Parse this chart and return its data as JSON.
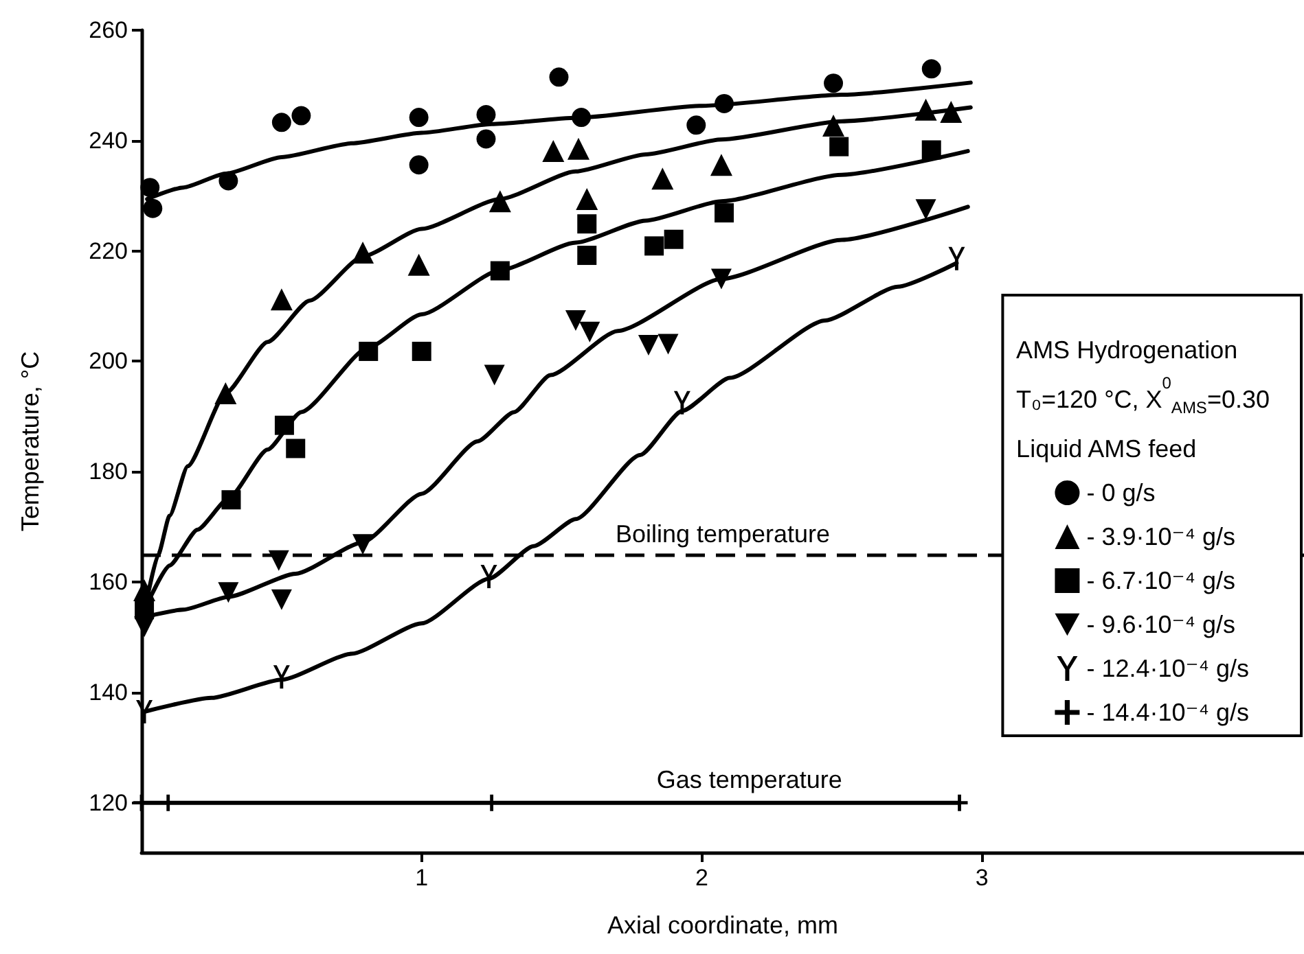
{
  "chart_data": {
    "type": "scatter",
    "xlabel": "Axial coordinate, mm",
    "ylabel": "Temperature, °C",
    "legend_title": "AMS Hydrogenation\nT₀=120 °C, X$^{0}$$_{AMS}$=0.30\nLiquid AMS feed",
    "xlim": [
      0,
      4.15
    ],
    "xticks": [
      1,
      2,
      3
    ],
    "ylim": [
      111,
      260
    ],
    "yticks": [
      120,
      140,
      160,
      180,
      200,
      220,
      240,
      260
    ],
    "grid": false,
    "legend": "right",
    "ref_lines": [
      {
        "axis": "y",
        "value": 165,
        "label": "Boiling temperature",
        "line_style": "dashed",
        "color": "#000000"
      }
    ],
    "annotations": [
      {
        "text": "Gas temperature",
        "x": 2.17,
        "y": 120
      }
    ],
    "series": [
      {
        "name": "- 0 g/s",
        "marker": "circle",
        "color": "#000000",
        "x": [
          0.03,
          0.04,
          0.31,
          0.5,
          0.57,
          0.99,
          0.99,
          1.23,
          1.23,
          1.49,
          1.57,
          1.98,
          2.08,
          2.47,
          2.82
        ],
        "values": [
          231.5,
          227.7,
          232.7,
          243.3,
          244.5,
          244.2,
          235.6,
          244.7,
          240.3,
          251.5,
          244.2,
          242.8,
          246.7,
          250.4,
          253
        ]
      },
      {
        "name": "- 3.9·10⁻⁴ g/s",
        "marker": "triangle",
        "color": "#000000",
        "x": [
          0.01,
          0.3,
          0.5,
          0.79,
          0.99,
          1.28,
          1.47,
          1.56,
          1.59,
          1.86,
          2.07,
          2.47,
          2.8,
          2.89
        ],
        "values": [
          158.5,
          194.2,
          211.2,
          219.7,
          217.5,
          229,
          238.1,
          238.5,
          229.4,
          233.1,
          235.6,
          242.7,
          245.6,
          245.2
        ]
      },
      {
        "name": "- 6.7·10⁻⁴ g/s",
        "marker": "square",
        "color": "#000000",
        "x": [
          0.01,
          0.32,
          0.51,
          0.55,
          0.81,
          1.0,
          1.28,
          1.59,
          1.59,
          1.83,
          1.9,
          2.08,
          2.49,
          2.82
        ],
        "values": [
          155,
          174.9,
          188.4,
          184.2,
          201.8,
          201.8,
          216.4,
          224.9,
          219.2,
          220.9,
          222.1,
          226.9,
          238.9,
          238.3
        ]
      },
      {
        "name": "- 9.6·10⁻⁴ g/s",
        "marker": "triangle-down",
        "color": "#000000",
        "x": [
          0.01,
          0.31,
          0.49,
          0.5,
          0.79,
          1.26,
          1.55,
          1.6,
          1.81,
          1.88,
          2.07,
          2.8
        ],
        "values": [
          151.9,
          158.1,
          163.9,
          156.8,
          166.8,
          197.5,
          207.4,
          205.3,
          202.9,
          203.1,
          214.9,
          227.5
        ]
      },
      {
        "name": "- 12.4·10⁻⁴ g/s",
        "color": "#000000",
        "x": [
          0.01,
          0.5,
          1.24,
          1.93,
          2.91
        ],
        "values": [
          136.5,
          142.8,
          161,
          192.5,
          218.6
        ]
      },
      {
        "name": "- 14.4·10⁻⁴ g/s",
        "type": "line",
        "marker": "cross",
        "line_style": "solid",
        "color": "#000000",
        "x": [
          0.0,
          0.095,
          1.25,
          2.92
        ],
        "values": [
          120,
          120,
          120,
          120
        ]
      },
      {
        "type": "line",
        "marker": "none",
        "line_style": "solid",
        "color": "#000000",
        "x": [
          0.02,
          0.15,
          0.3,
          0.5,
          0.75,
          1.0,
          1.25,
          1.55,
          2.0,
          2.5,
          2.96
        ],
        "values": [
          229.4,
          231.5,
          234,
          237,
          239.5,
          241.4,
          243,
          244.1,
          246.3,
          248.3,
          250.5
        ]
      },
      {
        "type": "line",
        "marker": "none",
        "line_style": "solid",
        "color": "#000000",
        "x": [
          0.02,
          0.06,
          0.1,
          0.165,
          0.3,
          0.45,
          0.6,
          0.79,
          1.0,
          1.28,
          1.55,
          1.8,
          2.07,
          2.5,
          2.96
        ],
        "values": [
          157,
          165,
          172,
          181,
          194.2,
          203.5,
          211,
          219,
          224,
          229.4,
          234.4,
          237.5,
          240.2,
          243.5,
          246
        ]
      },
      {
        "type": "line",
        "marker": "none",
        "line_style": "solid",
        "color": "#000000",
        "x": [
          0.02,
          0.1,
          0.2,
          0.31,
          0.45,
          0.57,
          0.81,
          1.0,
          1.28,
          1.55,
          1.8,
          2.07,
          2.5,
          2.95
        ],
        "values": [
          156,
          163,
          169.5,
          175.1,
          184,
          190.8,
          202.5,
          208.5,
          216.5,
          221.5,
          225.5,
          229,
          233.8,
          238.1
        ]
      },
      {
        "type": "line",
        "marker": "none",
        "line_style": "solid",
        "color": "#000000",
        "x": [
          0.03,
          0.15,
          0.31,
          0.55,
          0.79,
          1.0,
          1.2,
          1.33,
          1.46,
          1.7,
          2.07,
          2.5,
          2.95
        ],
        "values": [
          153.9,
          155,
          157.3,
          161.5,
          167.2,
          176,
          185.5,
          190.8,
          197.5,
          205.5,
          214.9,
          222,
          228
        ]
      },
      {
        "type": "line",
        "marker": "none",
        "line_style": "solid",
        "color": "#000000",
        "x": [
          0.01,
          0.25,
          0.5,
          0.75,
          1.0,
          1.24,
          1.4,
          1.55,
          1.78,
          1.93,
          2.1,
          2.44,
          2.7,
          2.91
        ],
        "values": [
          136.5,
          139,
          142.3,
          147,
          152.5,
          160.6,
          166.5,
          171.4,
          183,
          191,
          197,
          207.4,
          213.5,
          217.8
        ]
      }
    ]
  }
}
